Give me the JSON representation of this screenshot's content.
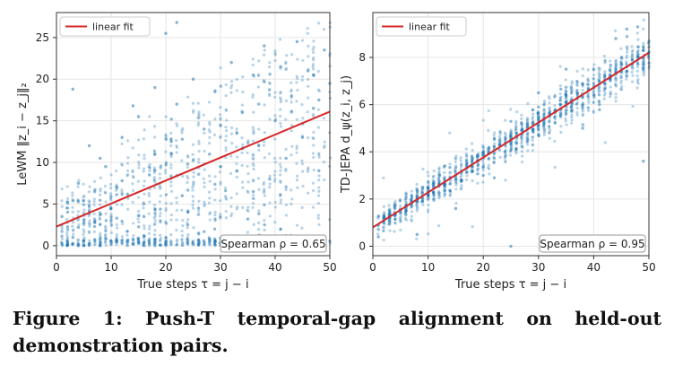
{
  "caption": "Figure 1: Push-T temporal-gap alignment on held-out demonstration pairs.",
  "colors": {
    "points": "#1f77b4",
    "fit": "#d62728",
    "grid": "#e6e6e6"
  },
  "chart_data": [
    {
      "type": "scatter",
      "xlabel": "True steps  τ = j − i",
      "ylabel": "LeWM  ‖z_i − z_j‖₂",
      "xlim": [
        0,
        50
      ],
      "ylim": [
        -1.2,
        28
      ],
      "xticks": [
        0,
        10,
        20,
        30,
        40,
        50
      ],
      "yticks": [
        0,
        5,
        10,
        15,
        20,
        25
      ],
      "grid": true,
      "legend": "top-left",
      "legend_label": "linear fit",
      "fit": {
        "x": [
          0,
          50
        ],
        "y": [
          2.3,
          16.1
        ]
      },
      "annotation": "Spearman ρ = 0.65",
      "spearman": 0.65,
      "spread_note": "points concentrated near y = 0–1 with wide vertical spread up to ~26",
      "series": [
        {
          "x": [
            1,
            1,
            2,
            2,
            3,
            4,
            5,
            6,
            7,
            8,
            9,
            10,
            11,
            12,
            13,
            14,
            15,
            16,
            17,
            18,
            19,
            20,
            21,
            22,
            23,
            24,
            25,
            26,
            27,
            28,
            29,
            30,
            31,
            32,
            33,
            34,
            35,
            36,
            37,
            38,
            39,
            40,
            41,
            42,
            43,
            44,
            45,
            46,
            47,
            48,
            49,
            50,
            3,
            8,
            14,
            20,
            26,
            33,
            41,
            47,
            6,
            12,
            18,
            24,
            30,
            36,
            42,
            48,
            22,
            16,
            9,
            4
          ],
          "y": [
            0.3,
            3.5,
            0.5,
            5.2,
            1.0,
            7.5,
            0.6,
            12.0,
            2.8,
            0.4,
            9.5,
            4.5,
            0.5,
            13.0,
            6.2,
            0.8,
            15.5,
            1.2,
            8.5,
            19.0,
            3.0,
            0.5,
            12.5,
            17.0,
            6.0,
            9.8,
            20.0,
            1.5,
            14.0,
            11.0,
            18.5,
            9.5,
            0.6,
            22.0,
            13.5,
            16.0,
            3.2,
            20.5,
            12.0,
            24.0,
            8.0,
            15.0,
            21.5,
            10.5,
            18.0,
            24.5,
            13.0,
            21.0,
            16.5,
            9.0,
            23.5,
            19.5,
            18.8,
            10.5,
            16.8,
            25.5,
            4.5,
            9.0,
            2.0,
            20.5,
            4.2,
            7.8,
            11.0,
            2.5,
            14.5,
            6.5,
            1.2,
            17.5,
            26.8,
            3.5,
            1.8,
            2.2
          ]
        }
      ]
    },
    {
      "type": "scatter",
      "xlabel": "True steps  τ = j − i",
      "ylabel": "TD-JEPA  d_ψ(z_i, z_j)",
      "xlim": [
        0,
        50
      ],
      "ylim": [
        -0.4,
        9.9
      ],
      "xticks": [
        0,
        10,
        20,
        30,
        40,
        50
      ],
      "yticks": [
        0,
        2,
        4,
        6,
        8
      ],
      "grid": true,
      "legend": "top-left",
      "legend_label": "linear fit",
      "fit": {
        "x": [
          0,
          50
        ],
        "y": [
          0.8,
          8.2
        ]
      },
      "annotation": "Spearman ρ = 0.95",
      "spearman": 0.95,
      "series": [
        {
          "x": [
            1,
            1,
            2,
            3,
            4,
            5,
            6,
            7,
            8,
            9,
            10,
            11,
            12,
            13,
            14,
            15,
            16,
            17,
            18,
            19,
            20,
            21,
            22,
            23,
            24,
            25,
            26,
            27,
            28,
            29,
            30,
            31,
            32,
            33,
            34,
            35,
            36,
            37,
            38,
            39,
            40,
            41,
            42,
            43,
            44,
            45,
            46,
            47,
            48,
            49,
            50,
            8,
            15,
            22,
            30,
            38,
            46,
            20,
            35,
            44,
            49,
            25
          ],
          "y": [
            0.4,
            0.9,
            1.0,
            1.2,
            1.4,
            1.5,
            1.5,
            1.8,
            2.0,
            1.9,
            2.2,
            2.3,
            2.7,
            2.6,
            2.9,
            3.0,
            3.1,
            3.5,
            3.4,
            3.6,
            3.9,
            3.7,
            4.2,
            4.3,
            4.5,
            4.4,
            4.8,
            4.9,
            5.1,
            5.2,
            5.4,
            5.3,
            5.6,
            5.7,
            6.0,
            6.1,
            6.2,
            6.5,
            6.3,
            6.7,
            6.9,
            7.0,
            7.2,
            7.1,
            7.4,
            7.7,
            7.6,
            7.9,
            8.1,
            8.3,
            8.2,
            0.5,
            1.6,
            2.9,
            6.5,
            5.0,
            9.2,
            3.0,
            7.5,
            8.8,
            3.6,
            0.0
          ]
        }
      ]
    }
  ]
}
